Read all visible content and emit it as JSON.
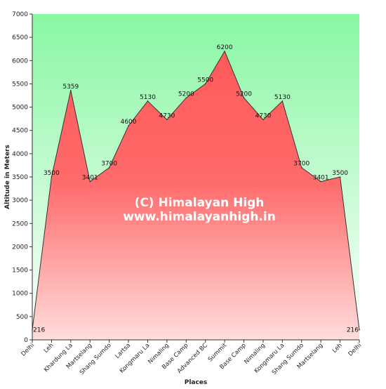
{
  "chart_data": {
    "type": "area",
    "xlabel": "Places",
    "ylabel": "Altitude in Meters",
    "ylim": [
      0,
      7000
    ],
    "yticks": [
      0,
      500,
      1000,
      1500,
      2000,
      2500,
      3000,
      3500,
      4000,
      4500,
      5000,
      5500,
      6000,
      6500,
      7000
    ],
    "categories": [
      "Delhi",
      "Leh",
      "Khardung La",
      "Martselang",
      "Shang Sumdo",
      "Lartsa",
      "Kongmaru La",
      "Nimaling",
      "Base Camp",
      "Advanced BC",
      "Summit",
      "Base Camp",
      "Nimaling",
      "Kongmaru La",
      "Shang Sumdo",
      "Martselang",
      "Leh",
      "Delhi"
    ],
    "values": [
      216,
      3500,
      5359,
      3401,
      3700,
      4600,
      5130,
      4730,
      5200,
      5500,
      6200,
      5200,
      4730,
      5130,
      3700,
      3401,
      3500,
      216
    ],
    "grid": false,
    "legend": "none",
    "colors": {
      "background_top": "#88f7a2",
      "background_bottom": "#ffffff",
      "area_top": "#ff5a5a",
      "area_bottom": "#ffdcdc",
      "line": "#333333",
      "axis": "#333333"
    },
    "watermark": {
      "line1": "(C) Himalayan High",
      "line2": "www.himalayanhigh.in"
    }
  }
}
